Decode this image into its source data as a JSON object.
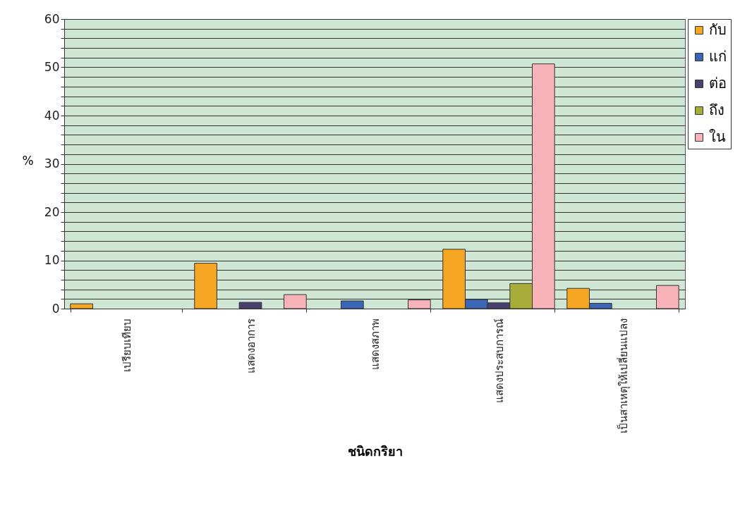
{
  "chart_data": {
    "type": "bar",
    "xlabel": "ชนิดกริยา",
    "ylabel": "%",
    "categories": [
      "เปรียบเทียบ",
      "แสดงอาการ",
      "แสดงสภาพ",
      "แสดงประสบการณ์",
      "เป็นสาเหตุให้เปลี่ยนแปลง"
    ],
    "series": [
      {
        "name": "กับ",
        "color": "#f5a623",
        "values": [
          1.0,
          9.4,
          null,
          12.3,
          4.2
        ]
      },
      {
        "name": "แก่",
        "color": "#3b66b5",
        "values": [
          null,
          null,
          1.6,
          1.9,
          1.1
        ]
      },
      {
        "name": "ต่อ",
        "color": "#4a4070",
        "values": [
          null,
          1.3,
          null,
          1.2,
          null
        ]
      },
      {
        "name": "ถึง",
        "color": "#a8ad3a",
        "values": [
          null,
          null,
          null,
          5.2,
          null
        ]
      },
      {
        "name": "ใน",
        "color": "#f7b3b8",
        "values": [
          null,
          2.9,
          1.8,
          50.7,
          4.8
        ]
      }
    ],
    "ylim": [
      0,
      60
    ],
    "yticks": [
      0,
      {
        "value": 2,
        "label": null
      },
      {
        "value": 4,
        "label": null
      },
      {
        "value": 6,
        "label": null
      },
      {
        "value": 8,
        "label": null
      },
      10,
      {
        "value": 12,
        "label": null
      },
      {
        "value": 14,
        "label": null
      },
      {
        "value": 16,
        "label": null
      },
      {
        "value": 18,
        "label": null
      },
      20,
      {
        "value": 22,
        "label": null
      },
      {
        "value": 24,
        "label": null
      },
      {
        "value": 26,
        "label": null
      },
      {
        "value": 28,
        "label": null
      },
      30,
      {
        "value": 32,
        "label": null
      },
      {
        "value": 34,
        "label": null
      },
      {
        "value": 36,
        "label": null
      },
      {
        "value": 38,
        "label": null
      },
      40,
      {
        "value": 42,
        "label": null
      },
      {
        "value": 44,
        "label": null
      },
      {
        "value": 46,
        "label": null
      },
      {
        "value": 48,
        "label": null
      },
      50,
      {
        "value": 52,
        "label": null
      },
      {
        "value": 54,
        "label": null
      },
      {
        "value": 56,
        "label": null
      },
      {
        "value": 58,
        "label": null
      },
      60
    ],
    "grid": true,
    "legend": "right"
  }
}
